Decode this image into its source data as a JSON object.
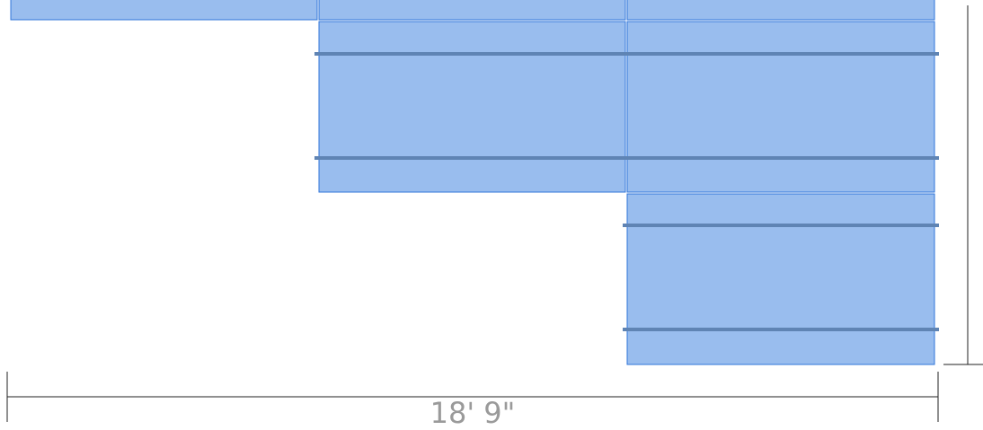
{
  "diagram": {
    "dimension_label": "18' 9\""
  },
  "colors": {
    "panel_fill": "#99bdee",
    "panel_stroke": "#2f75d9",
    "rail": "#5f84b4",
    "dimension_text": "#9a9a9a"
  }
}
